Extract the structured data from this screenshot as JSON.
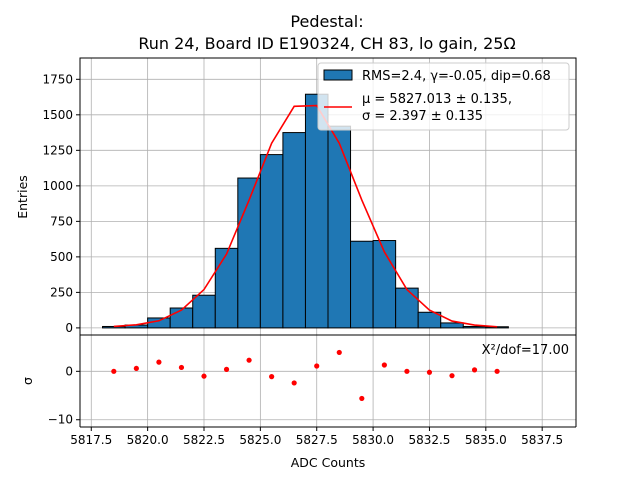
{
  "chart_data": {
    "type": "bar",
    "title_line1": "Pedestal:",
    "title_line2": "Run 24, Board ID E190324, CH 83, lo gain, 25Ω",
    "xlabel": "ADC Counts",
    "ylabel_top": "Entries",
    "ylabel_bottom": "σ",
    "xlim": [
      5817.0,
      5839.0
    ],
    "ylim_top": [
      -50,
      1900
    ],
    "ylim_bottom": [
      -11.5,
      7.5
    ],
    "x_ticks": [
      "5817.5",
      "5820.0",
      "5822.5",
      "5825.0",
      "5827.5",
      "5830.0",
      "5832.5",
      "5835.0",
      "5837.5"
    ],
    "x_tick_values": [
      5817.5,
      5820.0,
      5822.5,
      5825.0,
      5827.5,
      5830.0,
      5832.5,
      5835.0,
      5837.5
    ],
    "y_ticks_top": [
      "0",
      "250",
      "500",
      "750",
      "1000",
      "1250",
      "1500",
      "1750"
    ],
    "y_tick_values_top": [
      0,
      250,
      500,
      750,
      1000,
      1250,
      1500,
      1750
    ],
    "y_ticks_bottom": [
      "−10",
      "0"
    ],
    "y_tick_values_bottom": [
      -10,
      0
    ],
    "grid": true,
    "histogram": {
      "name": "RMS=2.4, γ=-0.05, dip=0.68",
      "color": "#1f77b4",
      "bin_edges": [
        5818,
        5819,
        5820,
        5821,
        5822,
        5823,
        5824,
        5825,
        5826,
        5827,
        5828,
        5829,
        5830,
        5831,
        5832,
        5833,
        5834,
        5835,
        5836
      ],
      "values": [
        10,
        20,
        70,
        140,
        230,
        560,
        1055,
        1220,
        1375,
        1645,
        1420,
        610,
        615,
        280,
        110,
        35,
        10,
        8
      ]
    },
    "fit": {
      "name_line1": "μ = 5827.013 ± 0.135,",
      "name_line2": "σ = 2.397 ± 0.135",
      "color": "#ff0000",
      "x": [
        5818.5,
        5819.5,
        5820.5,
        5821.5,
        5822.5,
        5823.5,
        5824.5,
        5825.5,
        5826.5,
        5827.5,
        5828.5,
        5829.5,
        5830.5,
        5831.5,
        5832.5,
        5833.5,
        5834.5,
        5835.5
      ],
      "y": [
        10,
        22,
        50,
        125,
        270,
        520,
        900,
        1300,
        1560,
        1565,
        1300,
        900,
        535,
        270,
        125,
        48,
        20,
        8
      ]
    },
    "residuals": {
      "color": "#ff0000",
      "annotation": "X²/dof=17.00",
      "x": [
        5818.5,
        5819.5,
        5820.5,
        5821.5,
        5822.5,
        5823.5,
        5824.5,
        5825.5,
        5826.5,
        5827.5,
        5828.5,
        5829.5,
        5830.5,
        5831.5,
        5832.5,
        5833.5,
        5834.5,
        5835.5
      ],
      "y": [
        0.0,
        0.6,
        1.9,
        0.8,
        -1.0,
        0.4,
        2.3,
        -1.1,
        -2.4,
        1.1,
        3.9,
        -5.6,
        1.3,
        0.0,
        -0.2,
        -0.9,
        0.3,
        0.0
      ]
    },
    "legend_position": "top-right"
  }
}
